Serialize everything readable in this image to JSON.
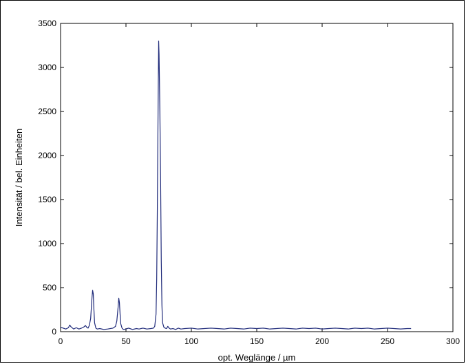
{
  "chart_data": {
    "type": "line",
    "title": "",
    "xlabel": "opt. Weglänge / µm",
    "ylabel": "Intensität / bel. Einheiten",
    "xlim": [
      0,
      300
    ],
    "ylim": [
      0,
      3500
    ],
    "xticks": [
      0,
      50,
      100,
      150,
      200,
      250,
      300
    ],
    "yticks": [
      0,
      500,
      1000,
      1500,
      2000,
      2500,
      3000,
      3500
    ],
    "grid": false,
    "legend": "none",
    "series": [
      {
        "color": "#1f2a7a",
        "x": [
          0,
          2,
          4,
          6,
          7,
          8,
          10,
          12,
          14,
          16,
          18,
          19,
          20,
          21,
          22,
          23,
          24,
          24.5,
          25,
          25.5,
          26,
          27,
          28,
          30,
          33,
          36,
          40,
          42,
          43,
          44,
          44.5,
          45,
          45.5,
          46,
          47,
          48,
          50,
          52,
          55,
          58,
          60,
          63,
          66,
          69,
          71,
          72,
          73,
          73.5,
          74,
          74.5,
          75,
          75.3,
          75.6,
          76,
          76.5,
          77,
          77.5,
          78,
          79,
          80,
          81,
          82,
          83,
          84,
          86,
          88,
          90,
          92,
          95,
          100,
          105,
          110,
          115,
          120,
          125,
          130,
          135,
          140,
          145,
          150,
          155,
          160,
          165,
          170,
          175,
          180,
          185,
          190,
          195,
          200,
          205,
          210,
          215,
          220,
          225,
          230,
          235,
          240,
          245,
          250,
          255,
          260,
          265,
          268
        ],
        "y": [
          50,
          40,
          30,
          45,
          75,
          55,
          30,
          45,
          30,
          40,
          55,
          70,
          50,
          40,
          70,
          150,
          380,
          470,
          430,
          250,
          100,
          40,
          30,
          35,
          25,
          30,
          40,
          60,
          120,
          280,
          380,
          330,
          200,
          90,
          40,
          25,
          30,
          40,
          25,
          35,
          30,
          40,
          30,
          35,
          40,
          60,
          200,
          600,
          1400,
          2400,
          3300,
          3150,
          2850,
          2400,
          1700,
          800,
          300,
          100,
          50,
          40,
          35,
          60,
          40,
          30,
          35,
          25,
          40,
          30,
          35,
          40,
          30,
          35,
          40,
          35,
          30,
          40,
          35,
          30,
          40,
          35,
          40,
          30,
          35,
          40,
          35,
          30,
          40,
          35,
          40,
          30,
          35,
          40,
          35,
          30,
          40,
          35,
          40,
          30,
          35,
          40,
          35,
          30,
          35,
          35
        ]
      }
    ]
  }
}
